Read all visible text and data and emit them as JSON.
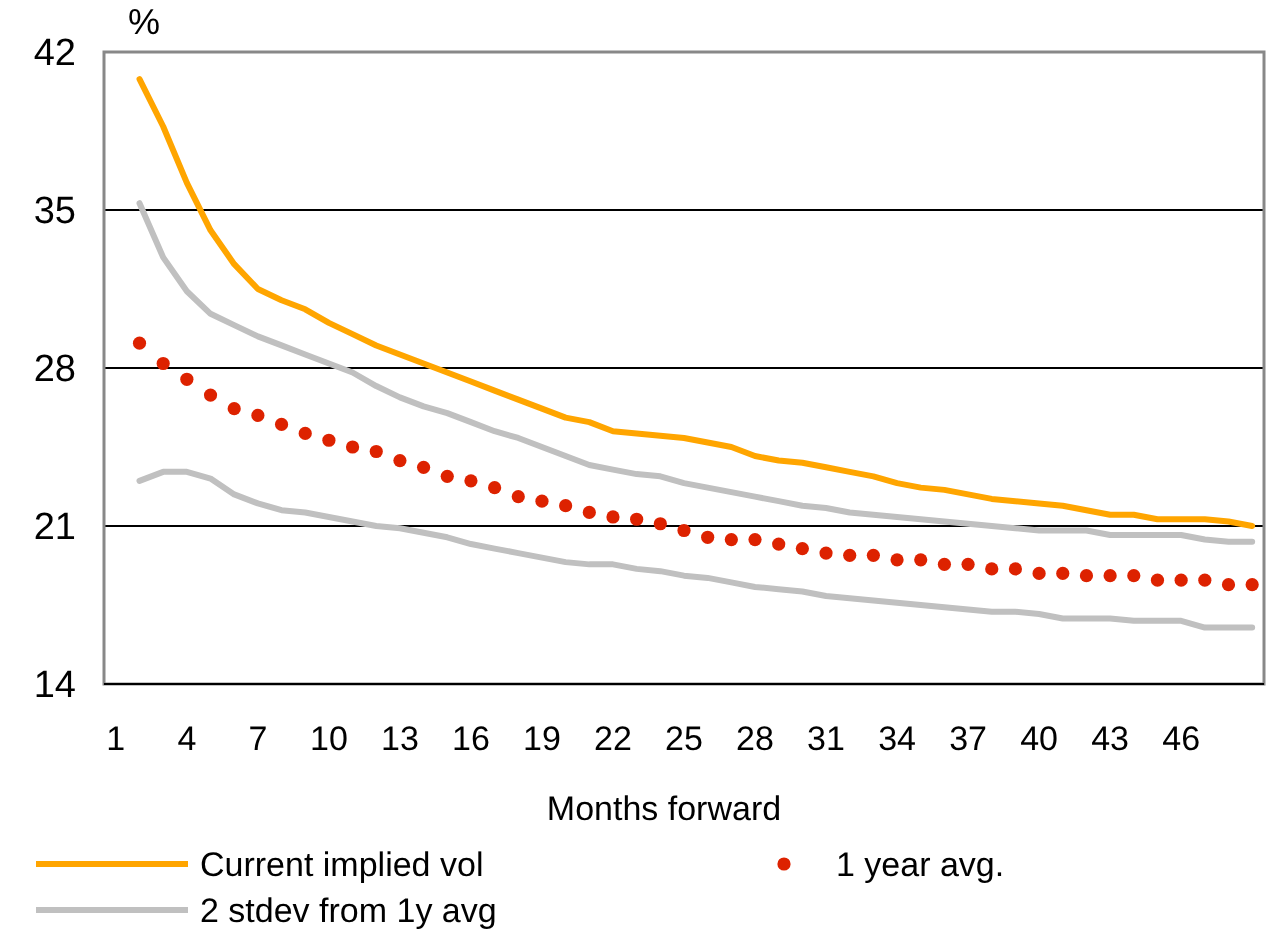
{
  "chart_data": {
    "type": "line",
    "xlabel": "Months forward",
    "ylabel": "%",
    "x": [
      2,
      3,
      4,
      5,
      6,
      7,
      8,
      9,
      10,
      11,
      12,
      13,
      14,
      15,
      16,
      17,
      18,
      19,
      20,
      21,
      22,
      23,
      24,
      25,
      26,
      27,
      28,
      29,
      30,
      31,
      32,
      33,
      34,
      35,
      36,
      37,
      38,
      39,
      40,
      41,
      42,
      43,
      44,
      45,
      46,
      47,
      48,
      49
    ],
    "xlim": [
      0.5,
      49.5
    ],
    "xticks": [
      1,
      4,
      7,
      10,
      13,
      16,
      19,
      22,
      25,
      28,
      31,
      34,
      37,
      40,
      43,
      46
    ],
    "ylim": [
      14,
      42
    ],
    "yticks": [
      14,
      21,
      28,
      35,
      42
    ],
    "grid": "y",
    "legend": "bottom",
    "series": [
      {
        "name": "Current implied vol",
        "color": "#ffa500",
        "values": [
          40.8,
          38.7,
          36.2,
          34.1,
          32.6,
          31.5,
          31.0,
          30.6,
          30.0,
          29.5,
          29.0,
          28.6,
          28.2,
          27.8,
          27.4,
          27.0,
          26.6,
          26.2,
          25.8,
          25.6,
          25.2,
          25.1,
          25.0,
          24.9,
          24.7,
          24.5,
          24.1,
          23.9,
          23.8,
          23.6,
          23.4,
          23.2,
          22.9,
          22.7,
          22.6,
          22.4,
          22.2,
          22.1,
          22.0,
          21.9,
          21.7,
          21.5,
          21.5,
          21.3,
          21.3,
          21.3,
          21.2,
          21.0
        ]
      },
      {
        "name": "1 year avg.",
        "type": "scatter",
        "marker": "circle",
        "color": "#dd2200",
        "values": [
          29.1,
          28.2,
          27.5,
          26.8,
          26.2,
          25.9,
          25.5,
          25.1,
          24.8,
          24.5,
          24.3,
          23.9,
          23.6,
          23.2,
          23.0,
          22.7,
          22.3,
          22.1,
          21.9,
          21.6,
          21.4,
          21.3,
          21.1,
          20.8,
          20.5,
          20.4,
          20.4,
          20.2,
          20.0,
          19.8,
          19.7,
          19.7,
          19.5,
          19.5,
          19.3,
          19.3,
          19.1,
          19.1,
          18.9,
          18.9,
          18.8,
          18.8,
          18.8,
          18.6,
          18.6,
          18.6,
          18.4,
          18.4
        ]
      },
      {
        "name": "2 stdev from 1y avg",
        "color": "#c0c0c0",
        "values": [
          35.3,
          32.9,
          31.4,
          30.4,
          29.9,
          29.4,
          29.0,
          28.6,
          28.2,
          27.8,
          27.2,
          26.7,
          26.3,
          26.0,
          25.6,
          25.2,
          24.9,
          24.5,
          24.1,
          23.7,
          23.5,
          23.3,
          23.2,
          22.9,
          22.7,
          22.5,
          22.3,
          22.1,
          21.9,
          21.8,
          21.6,
          21.5,
          21.4,
          21.3,
          21.2,
          21.1,
          21.0,
          20.9,
          20.8,
          20.8,
          20.8,
          20.6,
          20.6,
          20.6,
          20.6,
          20.4,
          20.3,
          20.3
        ]
      },
      {
        "color": "#c0c0c0",
        "values": [
          23.0,
          23.4,
          23.4,
          23.1,
          22.4,
          22.0,
          21.7,
          21.6,
          21.4,
          21.2,
          21.0,
          20.9,
          20.7,
          20.5,
          20.2,
          20.0,
          19.8,
          19.6,
          19.4,
          19.3,
          19.3,
          19.1,
          19.0,
          18.8,
          18.7,
          18.5,
          18.3,
          18.2,
          18.1,
          17.9,
          17.8,
          17.7,
          17.6,
          17.5,
          17.4,
          17.3,
          17.2,
          17.2,
          17.1,
          16.9,
          16.9,
          16.9,
          16.8,
          16.8,
          16.8,
          16.5,
          16.5,
          16.5
        ]
      }
    ]
  }
}
